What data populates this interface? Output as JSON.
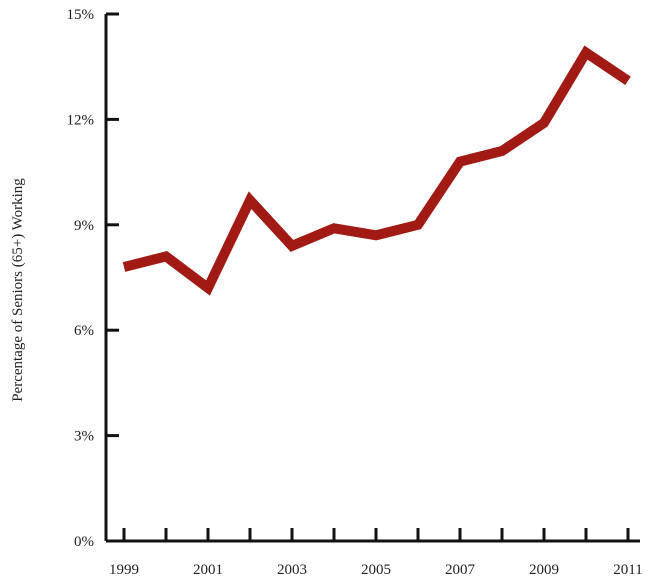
{
  "chart_data": {
    "type": "line",
    "title": "",
    "xlabel": "",
    "ylabel": "Percentage of Seniors (65+) Working",
    "x": [
      1999,
      2000,
      2001,
      2002,
      2003,
      2004,
      2005,
      2006,
      2007,
      2008,
      2009,
      2010,
      2011
    ],
    "x_tick_labels": [
      "1999",
      "2001",
      "2003",
      "2005",
      "2007",
      "2009",
      "2011"
    ],
    "y_tick_labels": [
      "0%",
      "3%",
      "6%",
      "9%",
      "12%",
      "15%"
    ],
    "y_ticks": [
      0,
      3,
      6,
      9,
      12,
      15
    ],
    "xlim": [
      1999,
      2011
    ],
    "ylim": [
      0,
      15
    ],
    "grid": false,
    "series": [
      {
        "values": [
          7.8,
          8.1,
          7.2,
          9.7,
          8.4,
          8.9,
          8.7,
          9.0,
          10.8,
          11.1,
          11.9,
          13.9,
          13.1
        ],
        "color": "#a11a14"
      }
    ]
  }
}
